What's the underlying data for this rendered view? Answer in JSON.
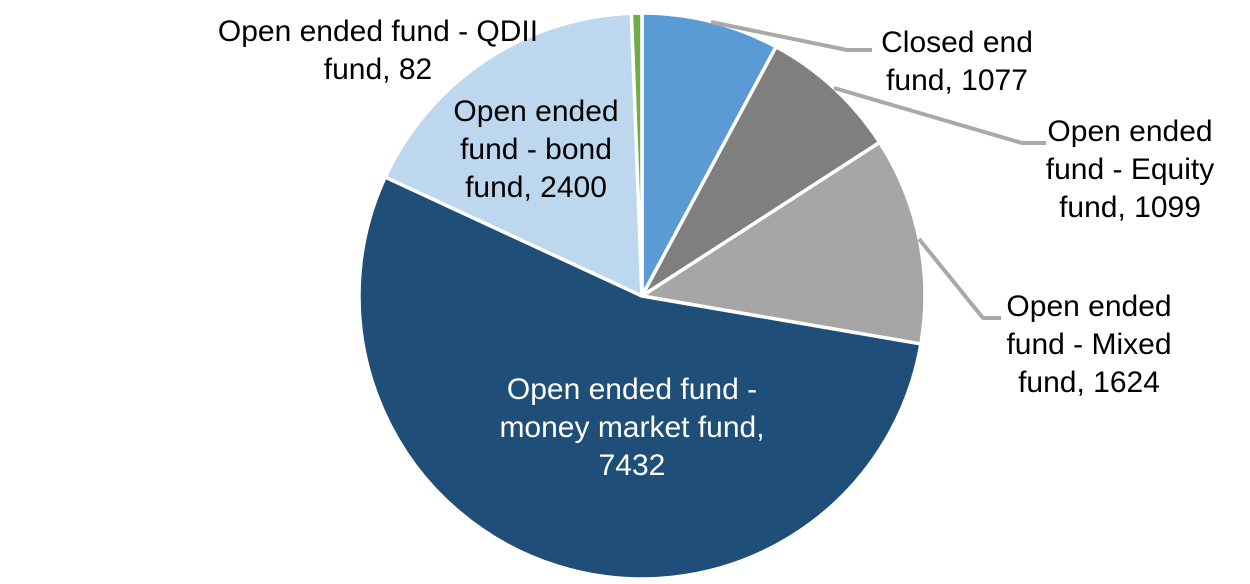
{
  "chart_data": {
    "type": "pie",
    "start_angle_deg": 0,
    "direction": "clockwise",
    "legend": "none",
    "slice_border_color": "#FFFFFF",
    "leader_line_color": "#A9A9A9",
    "background_color": "#FFFFFF",
    "slices": [
      {
        "label": "Closed end fund",
        "value": 1077,
        "color": "#5B9BD5"
      },
      {
        "label": "Open ended fund - Equity fund",
        "value": 1099,
        "color": "#7F7F7F"
      },
      {
        "label": "Open ended fund - Mixed fund",
        "value": 1624,
        "color": "#A6A6A6"
      },
      {
        "label": "Open ended fund - money market fund",
        "value": 7432,
        "color": "#1F4E79"
      },
      {
        "label": "Open ended fund - bond fund",
        "value": 2400,
        "color": "#BDD7EE"
      },
      {
        "label": "Open ended fund - QDII fund",
        "value": 82,
        "color": "#70AD47"
      }
    ]
  },
  "data_labels": {
    "qdii": {
      "lines": [
        "Open ended fund - QDII",
        "fund, 82"
      ]
    },
    "bond": {
      "lines": [
        "Open ended",
        "fund - bond",
        "fund, 2400"
      ]
    },
    "closed_end": {
      "lines": [
        "Closed end",
        "fund, 1077"
      ]
    },
    "equity": {
      "lines": [
        "Open ended",
        "fund - Equity",
        "fund, 1099"
      ]
    },
    "mixed": {
      "lines": [
        "Open ended",
        "fund - Mixed",
        "fund, 1624"
      ]
    },
    "money_market": {
      "lines": [
        "Open ended fund -",
        "money market fund,",
        "7432"
      ]
    }
  }
}
